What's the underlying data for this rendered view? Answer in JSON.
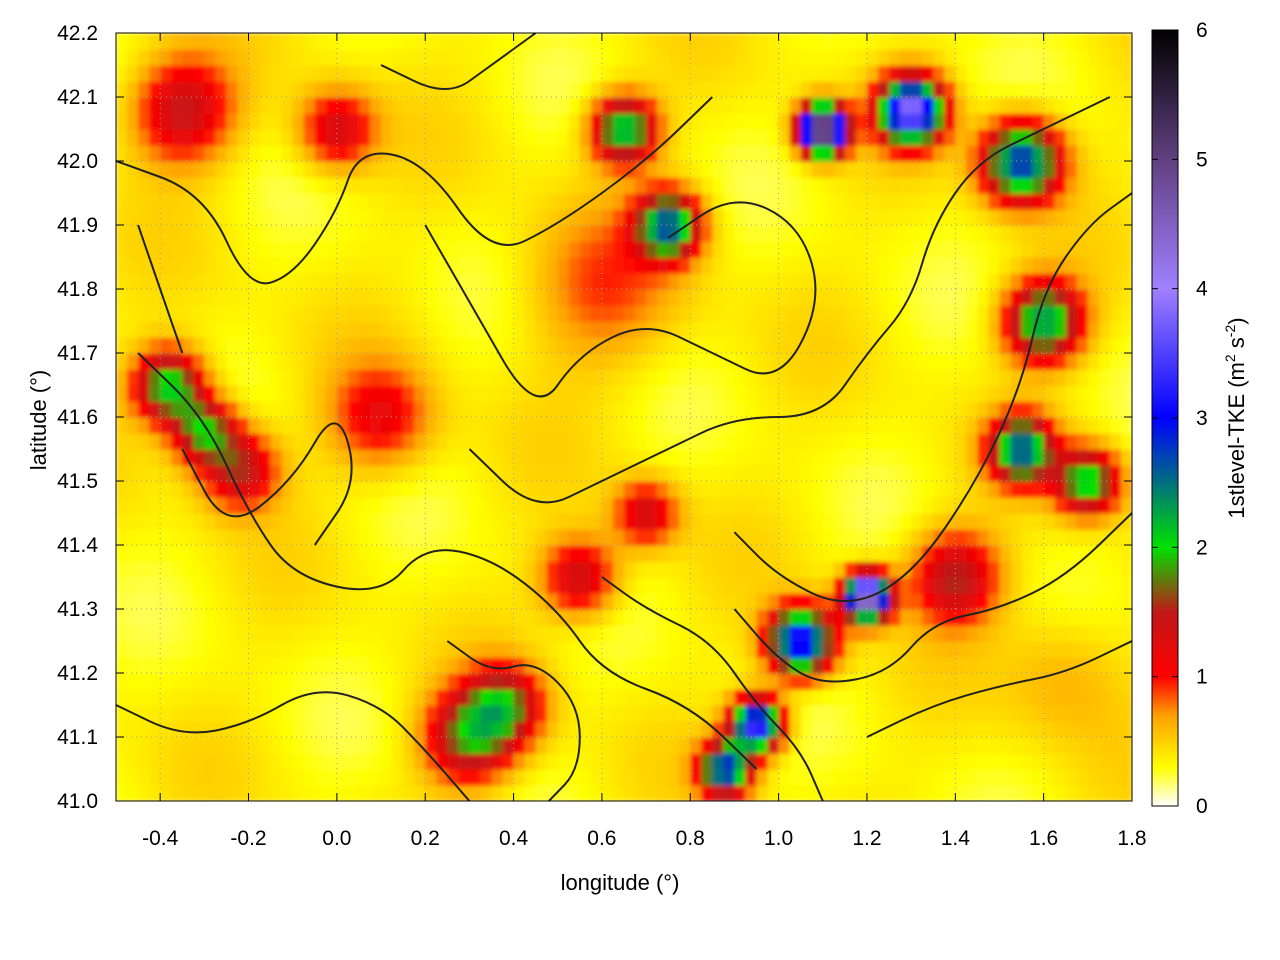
{
  "chart_data": {
    "type": "heatmap",
    "title": "",
    "xlabel": "longitude (°)",
    "ylabel": "latitude (°)",
    "xlim": [
      -0.5,
      1.8
    ],
    "ylim": [
      41.0,
      42.2
    ],
    "x_ticks": [
      -0.4,
      -0.2,
      0.0,
      0.2,
      0.4,
      0.6,
      0.8,
      1.0,
      1.2,
      1.4,
      1.6,
      1.8
    ],
    "x_tick_labels": [
      "-0.4",
      "-0.2",
      "0.0",
      "0.2",
      "0.4",
      "0.6",
      "0.8",
      "1.0",
      "1.2",
      "1.4",
      "1.6",
      "1.8"
    ],
    "y_ticks": [
      41.0,
      41.1,
      41.2,
      41.3,
      41.4,
      41.5,
      41.6,
      41.7,
      41.8,
      41.9,
      42.0,
      42.1,
      42.2
    ],
    "y_tick_labels": [
      "41.0",
      "41.1",
      "41.2",
      "41.3",
      "41.4",
      "41.5",
      "41.6",
      "41.7",
      "41.8",
      "41.9",
      "42.0",
      "42.1",
      "42.2"
    ],
    "grid": true,
    "colorbar": {
      "label_main": "1stlevel-TKE (m",
      "label_sup1": "2",
      "label_mid": " s",
      "label_sup2": "-2",
      "label_end": ")",
      "range": [
        0,
        6
      ],
      "ticks": [
        0,
        1,
        2,
        3,
        4,
        5,
        6
      ],
      "tick_labels": [
        "0",
        "1",
        "2",
        "3",
        "4",
        "5",
        "6"
      ],
      "stops": [
        {
          "value": 0.0,
          "color": "#ffffff"
        },
        {
          "value": 0.3,
          "color": "#ffff00"
        },
        {
          "value": 0.7,
          "color": "#ffa000"
        },
        {
          "value": 1.0,
          "color": "#ff0000"
        },
        {
          "value": 1.5,
          "color": "#c01818"
        },
        {
          "value": 2.0,
          "color": "#00e000"
        },
        {
          "value": 3.0,
          "color": "#0000ff"
        },
        {
          "value": 4.0,
          "color": "#a080ff"
        },
        {
          "value": 5.0,
          "color": "#604080"
        },
        {
          "value": 6.0,
          "color": "#000000"
        }
      ]
    },
    "features": [
      {
        "lon": -0.38,
        "lat": 41.65,
        "value": 1.8,
        "spread": 0.055
      },
      {
        "lon": -0.3,
        "lat": 41.58,
        "value": 1.5,
        "spread": 0.05
      },
      {
        "lon": -0.22,
        "lat": 41.52,
        "value": 1.2,
        "spread": 0.06
      },
      {
        "lon": -0.35,
        "lat": 42.08,
        "value": 1.1,
        "spread": 0.08
      },
      {
        "lon": 0.0,
        "lat": 42.05,
        "value": 1.0,
        "spread": 0.06
      },
      {
        "lon": 0.3,
        "lat": 41.1,
        "value": 1.4,
        "spread": 0.07
      },
      {
        "lon": 0.38,
        "lat": 41.15,
        "value": 1.3,
        "spread": 0.06
      },
      {
        "lon": 0.55,
        "lat": 41.35,
        "value": 1.1,
        "spread": 0.06
      },
      {
        "lon": 0.7,
        "lat": 41.45,
        "value": 1.0,
        "spread": 0.05
      },
      {
        "lon": 0.65,
        "lat": 42.05,
        "value": 2.0,
        "spread": 0.05
      },
      {
        "lon": 0.75,
        "lat": 41.9,
        "value": 2.2,
        "spread": 0.05
      },
      {
        "lon": 1.1,
        "lat": 42.05,
        "value": 5.5,
        "spread": 0.035
      },
      {
        "lon": 1.3,
        "lat": 42.08,
        "value": 3.5,
        "spread": 0.05
      },
      {
        "lon": 1.55,
        "lat": 42.0,
        "value": 2.5,
        "spread": 0.06
      },
      {
        "lon": 1.6,
        "lat": 41.75,
        "value": 2.0,
        "spread": 0.06
      },
      {
        "lon": 1.55,
        "lat": 41.55,
        "value": 2.2,
        "spread": 0.05
      },
      {
        "lon": 1.7,
        "lat": 41.5,
        "value": 1.8,
        "spread": 0.05
      },
      {
        "lon": 1.2,
        "lat": 41.32,
        "value": 4.5,
        "spread": 0.035
      },
      {
        "lon": 1.05,
        "lat": 41.25,
        "value": 3.0,
        "spread": 0.05
      },
      {
        "lon": 0.95,
        "lat": 41.12,
        "value": 3.2,
        "spread": 0.04
      },
      {
        "lon": 0.88,
        "lat": 41.05,
        "value": 2.5,
        "spread": 0.04
      },
      {
        "lon": 1.4,
        "lat": 41.35,
        "value": 1.2,
        "spread": 0.07
      },
      {
        "lon": 0.1,
        "lat": 41.6,
        "value": 0.8,
        "spread": 0.08
      },
      {
        "lon": 0.6,
        "lat": 41.8,
        "value": 0.5,
        "spread": 0.12
      },
      {
        "lon": 1.65,
        "lat": 41.2,
        "value": 0.3,
        "spread": 0.1
      }
    ],
    "contours": [
      [
        [
          -0.5,
          42.0
        ],
        [
          -0.3,
          41.95
        ],
        [
          -0.2,
          41.8
        ],
        [
          -0.1,
          41.82
        ],
        [
          0.0,
          41.92
        ],
        [
          0.05,
          42.02
        ],
        [
          0.2,
          42.0
        ],
        [
          0.35,
          41.85
        ],
        [
          0.5,
          41.9
        ],
        [
          0.7,
          42.0
        ],
        [
          0.85,
          42.1
        ]
      ],
      [
        [
          -0.45,
          41.7
        ],
        [
          -0.3,
          41.6
        ],
        [
          -0.2,
          41.45
        ],
        [
          -0.1,
          41.35
        ],
        [
          0.1,
          41.32
        ],
        [
          0.2,
          41.4
        ],
        [
          0.35,
          41.38
        ],
        [
          0.5,
          41.3
        ],
        [
          0.6,
          41.2
        ],
        [
          0.8,
          41.15
        ],
        [
          0.95,
          41.05
        ]
      ],
      [
        [
          -0.35,
          41.55
        ],
        [
          -0.25,
          41.42
        ],
        [
          -0.1,
          41.5
        ],
        [
          0.0,
          41.62
        ],
        [
          0.05,
          41.5
        ],
        [
          -0.05,
          41.4
        ]
      ],
      [
        [
          0.2,
          41.9
        ],
        [
          0.3,
          41.78
        ],
        [
          0.45,
          41.6
        ],
        [
          0.55,
          41.7
        ],
        [
          0.7,
          41.75
        ],
        [
          0.85,
          41.7
        ],
        [
          1.0,
          41.65
        ],
        [
          1.1,
          41.78
        ],
        [
          1.05,
          41.9
        ],
        [
          0.9,
          41.95
        ],
        [
          0.75,
          41.88
        ]
      ],
      [
        [
          0.3,
          41.55
        ],
        [
          0.45,
          41.45
        ],
        [
          0.6,
          41.5
        ],
        [
          0.75,
          41.55
        ],
        [
          0.9,
          41.6
        ],
        [
          1.1,
          41.6
        ],
        [
          1.2,
          41.7
        ],
        [
          1.3,
          41.78
        ],
        [
          1.35,
          41.9
        ],
        [
          1.45,
          42.0
        ],
        [
          1.6,
          42.05
        ],
        [
          1.75,
          42.1
        ]
      ],
      [
        [
          0.9,
          41.42
        ],
        [
          1.0,
          41.35
        ],
        [
          1.15,
          41.3
        ],
        [
          1.3,
          41.35
        ],
        [
          1.45,
          41.5
        ],
        [
          1.55,
          41.65
        ],
        [
          1.6,
          41.8
        ],
        [
          1.7,
          41.9
        ],
        [
          1.8,
          41.95
        ]
      ],
      [
        [
          0.9,
          41.3
        ],
        [
          1.0,
          41.22
        ],
        [
          1.1,
          41.18
        ],
        [
          1.25,
          41.2
        ],
        [
          1.35,
          41.28
        ],
        [
          1.5,
          41.3
        ],
        [
          1.65,
          41.35
        ],
        [
          1.8,
          41.45
        ]
      ],
      [
        [
          0.25,
          41.25
        ],
        [
          0.35,
          41.2
        ],
        [
          0.45,
          41.22
        ],
        [
          0.55,
          41.15
        ],
        [
          0.55,
          41.05
        ],
        [
          0.48,
          41.0
        ]
      ],
      [
        [
          0.6,
          41.35
        ],
        [
          0.7,
          41.3
        ],
        [
          0.85,
          41.25
        ],
        [
          0.95,
          41.15
        ],
        [
          1.05,
          41.08
        ],
        [
          1.1,
          41.0
        ]
      ],
      [
        [
          -0.5,
          41.15
        ],
        [
          -0.35,
          41.1
        ],
        [
          -0.2,
          41.12
        ],
        [
          -0.05,
          41.18
        ],
        [
          0.1,
          41.15
        ],
        [
          0.2,
          41.08
        ],
        [
          0.3,
          41.0
        ]
      ],
      [
        [
          1.2,
          41.1
        ],
        [
          1.35,
          41.15
        ],
        [
          1.5,
          41.18
        ],
        [
          1.65,
          41.2
        ],
        [
          1.8,
          41.25
        ]
      ],
      [
        [
          -0.45,
          41.9
        ],
        [
          -0.4,
          41.8
        ],
        [
          -0.35,
          41.7
        ]
      ],
      [
        [
          0.1,
          42.15
        ],
        [
          0.25,
          42.1
        ],
        [
          0.35,
          42.15
        ],
        [
          0.45,
          42.2
        ]
      ]
    ]
  }
}
